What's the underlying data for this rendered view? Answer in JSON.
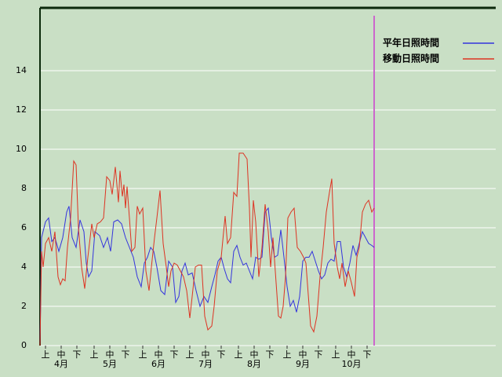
{
  "chart_data": {
    "type": "line",
    "series": [
      {
        "name": "平年日照時間",
        "color": "#3333dd",
        "x": [
          0,
          1,
          3.5,
          5.5,
          7.5,
          9.5,
          12,
          14.5,
          17,
          18.5,
          20.5,
          23,
          25.5,
          28,
          29.5,
          31,
          33,
          35,
          38,
          40.5,
          43,
          45,
          47,
          49.5,
          52,
          54.5,
          57,
          59.5,
          62,
          64.5,
          66.5,
          68.5,
          70.5,
          72.5,
          74.5,
          77,
          79.5,
          82,
          84.5,
          86.5,
          88.5,
          90.5,
          92.5,
          94.5,
          97,
          99.5,
          102,
          104.5,
          107,
          109.5,
          111.5,
          113.5,
          115.5,
          117.5,
          119.5,
          121.5,
          123.5,
          125.5,
          127.5,
          129.5,
          131.5,
          133.5,
          135.5,
          137.5,
          139.5,
          141.5,
          143.5,
          145.5,
          147.5,
          149.5,
          151.5,
          153.5,
          155.5,
          157.5,
          159.5,
          161.5,
          163.5,
          165.5,
          167.5,
          169.5,
          171.5,
          173.5,
          175.5,
          177.5,
          179.5,
          181.5,
          183.5,
          185.5,
          187.5,
          189.5,
          191.5,
          193.5,
          195.5,
          197.5,
          199.5,
          201.5,
          203.5,
          205.5,
          207.5,
          209.5,
          211.5,
          213
        ],
        "values": [
          0,
          5.5,
          6.3,
          6.5,
          5.3,
          5.5,
          4.8,
          5.5,
          6.8,
          7.1,
          5.5,
          5.0,
          6.4,
          5.8,
          4.2,
          3.5,
          3.8,
          5.8,
          5.6,
          5.0,
          5.5,
          4.8,
          6.3,
          6.4,
          6.2,
          5.5,
          5.0,
          4.5,
          3.5,
          3.0,
          4.2,
          4.5,
          5.0,
          4.8,
          4.0,
          2.8,
          2.6,
          4.3,
          4.0,
          2.2,
          2.5,
          3.8,
          4.2,
          3.6,
          3.7,
          2.8,
          2.0,
          2.5,
          2.2,
          3.0,
          3.6,
          4.3,
          4.5,
          3.9,
          3.4,
          3.2,
          4.8,
          5.1,
          4.5,
          4.1,
          4.2,
          3.8,
          3.4,
          4.5,
          4.4,
          4.5,
          6.8,
          7.0,
          5.5,
          4.5,
          4.6,
          5.9,
          4.5,
          3.0,
          2.0,
          2.3,
          1.7,
          2.5,
          4.3,
          4.5,
          4.5,
          4.8,
          4.3,
          3.8,
          3.4,
          3.6,
          4.2,
          4.4,
          4.3,
          5.3,
          5.3,
          4.0,
          3.5,
          4.2,
          5.1,
          4.6,
          5.2,
          5.8,
          5.5,
          5.2,
          5.1,
          5.0
        ]
      },
      {
        "name": "移動日照時間",
        "color": "#dd3322",
        "x": [
          0,
          1,
          2,
          3.5,
          5.5,
          7.5,
          9.5,
          11.5,
          13,
          14.5,
          16,
          17.5,
          19.5,
          21.5,
          23,
          24.5,
          26.5,
          28.5,
          30.5,
          33,
          34.5,
          36.5,
          38.5,
          40.5,
          42.5,
          44.5,
          46,
          48,
          50,
          51,
          52.5,
          53.5,
          54.5,
          55.5,
          57,
          58.5,
          60.5,
          62,
          63.5,
          65.5,
          67.5,
          69.5,
          71,
          73,
          74.5,
          76.5,
          78.5,
          80.5,
          82,
          83.5,
          85.5,
          87.5,
          89.5,
          91.5,
          93.5,
          95.5,
          97,
          99,
          101,
          103,
          105,
          107,
          109.5,
          111,
          113,
          115.5,
          118,
          119.5,
          121.5,
          123.5,
          125.5,
          127,
          129.5,
          132,
          133.5,
          134.5,
          136,
          137.5,
          139.5,
          141.5,
          143.5,
          145.5,
          147,
          148.5,
          150.5,
          152,
          153.5,
          155,
          156.5,
          158,
          160,
          162,
          164,
          166,
          168,
          169.5,
          171,
          172.5,
          174.5,
          176.5,
          178.5,
          180.5,
          182.5,
          184.5,
          186,
          187.5,
          189.5,
          191,
          192.5,
          194.5,
          196.5,
          198.5,
          200.5,
          202,
          203.5,
          205.5,
          207.5,
          209.5,
          211.5,
          213
        ],
        "values": [
          0,
          4.8,
          4.0,
          5.2,
          5.5,
          4.8,
          5.8,
          3.5,
          3.1,
          3.4,
          3.3,
          5.0,
          6.5,
          9.4,
          9.2,
          6.0,
          4.0,
          2.9,
          4.5,
          6.2,
          5.5,
          6.2,
          6.3,
          6.5,
          8.6,
          8.4,
          7.7,
          9.1,
          7.3,
          8.9,
          7.6,
          8.2,
          7.0,
          8.1,
          6.5,
          4.8,
          5.0,
          7.1,
          6.7,
          7.0,
          3.8,
          2.8,
          4.0,
          5.5,
          6.5,
          7.9,
          5.2,
          4.0,
          3.0,
          3.8,
          4.2,
          4.1,
          3.8,
          3.5,
          2.8,
          1.4,
          2.5,
          4.0,
          4.1,
          4.1,
          1.5,
          0.8,
          1.0,
          2.0,
          3.8,
          4.5,
          6.6,
          5.2,
          5.5,
          7.8,
          7.6,
          9.8,
          9.8,
          9.5,
          7.0,
          4.5,
          7.4,
          6.3,
          3.5,
          5.0,
          7.2,
          5.8,
          4.0,
          5.5,
          3.2,
          1.5,
          1.4,
          2.0,
          3.5,
          6.5,
          6.8,
          7.0,
          5.0,
          4.8,
          4.5,
          4.2,
          2.6,
          1.0,
          0.7,
          1.5,
          3.5,
          5.0,
          6.8,
          7.8,
          8.5,
          5.2,
          4.0,
          3.4,
          4.2,
          3.0,
          3.8,
          3.2,
          2.5,
          4.5,
          5.0,
          6.8,
          7.2,
          7.4,
          6.8,
          7.0
        ]
      }
    ],
    "xlim": [
      0,
      213.5
    ],
    "xticks": [
      {
        "value": 3.5,
        "label": "上"
      },
      {
        "value": 13.5,
        "label": "中"
      },
      {
        "value": 23.5,
        "label": "下"
      },
      {
        "value": 34.5,
        "label": "上"
      },
      {
        "value": 44.5,
        "label": "中"
      },
      {
        "value": 54.5,
        "label": "下"
      },
      {
        "value": 65.5,
        "label": "上"
      },
      {
        "value": 75.5,
        "label": "中"
      },
      {
        "value": 85.5,
        "label": "下"
      },
      {
        "value": 95.5,
        "label": "上"
      },
      {
        "value": 105.5,
        "label": "中"
      },
      {
        "value": 115.5,
        "label": "下"
      },
      {
        "value": 126.5,
        "label": "上"
      },
      {
        "value": 136.5,
        "label": "中"
      },
      {
        "value": 146.5,
        "label": "下"
      },
      {
        "value": 157.5,
        "label": "上"
      },
      {
        "value": 167.5,
        "label": "中"
      },
      {
        "value": 177.5,
        "label": "下"
      },
      {
        "value": 188.5,
        "label": "上"
      },
      {
        "value": 198.5,
        "label": "中"
      },
      {
        "value": 208.5,
        "label": "下"
      }
    ],
    "month_labels": [
      {
        "value": 13.5,
        "label": "4月"
      },
      {
        "value": 44.5,
        "label": "5月"
      },
      {
        "value": 75.5,
        "label": "6月"
      },
      {
        "value": 105.5,
        "label": "7月"
      },
      {
        "value": 136.5,
        "label": "8月"
      },
      {
        "value": 167.5,
        "label": "9月"
      },
      {
        "value": 198.5,
        "label": "10月"
      }
    ],
    "ylim": [
      0,
      17.2
    ],
    "yticks": [
      0,
      2,
      4,
      6,
      8,
      10,
      12,
      14
    ],
    "grid": true,
    "marker_x": 213,
    "marker_color": "#cc66cc"
  }
}
